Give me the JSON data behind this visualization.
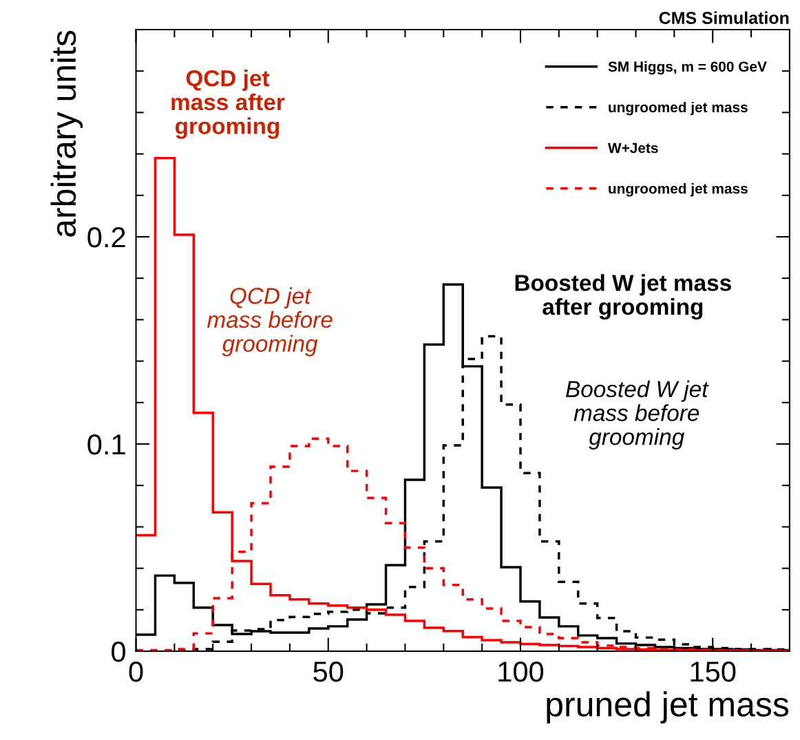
{
  "chart_data": {
    "type": "histogram",
    "title": "CMS Simulation",
    "xlabel": "pruned jet mass",
    "ylabel": "arbitrary units",
    "bins": [
      0,
      5,
      10,
      15,
      20,
      25,
      30,
      35,
      40,
      45,
      50,
      55,
      60,
      65,
      70,
      75,
      80,
      85,
      90,
      95,
      100,
      105,
      110,
      115,
      120,
      125,
      130,
      135,
      140,
      145,
      150,
      155,
      160,
      165,
      170
    ],
    "series": [
      {
        "name": "SM Higgs, m = 600 GeV",
        "color": "#000000",
        "line_style": "solid",
        "values": [
          0.008,
          0.0365,
          0.033,
          0.021,
          0.0126,
          0.0083,
          0.0096,
          0.009,
          0.009,
          0.011,
          0.012,
          0.0153,
          0.0226,
          0.0415,
          0.0827,
          0.148,
          0.177,
          0.1375,
          0.079,
          0.0405,
          0.024,
          0.0163,
          0.012,
          0.0076,
          0.0063,
          0.0037,
          0.003,
          0.002,
          0.0015,
          0.001,
          0.001,
          0.0008,
          0.0005,
          0.0005
        ]
      },
      {
        "name": "ungroomed jet mass",
        "color": "#000000",
        "line_style": "dashed",
        "values": [
          0,
          0,
          0.0003,
          0.001,
          0.0046,
          0.01,
          0.0106,
          0.015,
          0.0165,
          0.018,
          0.019,
          0.02,
          0.0183,
          0.021,
          0.031,
          0.053,
          0.0993,
          0.141,
          0.152,
          0.119,
          0.086,
          0.053,
          0.0335,
          0.023,
          0.016,
          0.0096,
          0.0066,
          0.0056,
          0.0033,
          0.002,
          0.0015,
          0.001,
          0.001,
          0.0008
        ]
      },
      {
        "name": "W+Jets",
        "color": "#ff0000",
        "line_style": "solid",
        "values": [
          0.056,
          0.238,
          0.201,
          0.115,
          0.067,
          0.0435,
          0.0325,
          0.027,
          0.025,
          0.023,
          0.022,
          0.021,
          0.02,
          0.0176,
          0.0146,
          0.0113,
          0.0097,
          0.0068,
          0.0053,
          0.0043,
          0.0035,
          0.003,
          0.0025,
          0.002,
          0.0015,
          0.001,
          0.0008,
          0.0006,
          0.0005,
          0.0004,
          0.0003,
          0.0003,
          0.0002,
          0.0002
        ]
      },
      {
        "name": "ungroomed jet mass",
        "color": "#ff0000",
        "line_style": "dashed",
        "values": [
          0.0005,
          0.0005,
          0.001,
          0.0086,
          0.0256,
          0.048,
          0.0714,
          0.089,
          0.099,
          0.1026,
          0.099,
          0.087,
          0.074,
          0.0618,
          0.05,
          0.04,
          0.032,
          0.025,
          0.0206,
          0.0146,
          0.0116,
          0.0083,
          0.0063,
          0.0043,
          0.0027,
          0.002,
          0.0015,
          0.001,
          0.0008,
          0.0006,
          0.0005,
          0.0004,
          0.0003,
          0.0003
        ]
      }
    ],
    "xlim": [
      0,
      170
    ],
    "ylim": [
      0,
      0.3
    ],
    "xticks": [
      0,
      {
        "value": 10,
        "label": null
      },
      {
        "value": 20,
        "label": null
      },
      {
        "value": 30,
        "label": null
      },
      {
        "value": 40,
        "label": null
      },
      50,
      {
        "value": 60,
        "label": null
      },
      {
        "value": 70,
        "label": null
      },
      {
        "value": 80,
        "label": null
      },
      {
        "value": 90,
        "label": null
      },
      100,
      {
        "value": 110,
        "label": null
      },
      {
        "value": 120,
        "label": null
      },
      {
        "value": 130,
        "label": null
      },
      {
        "value": 140,
        "label": null
      },
      150,
      {
        "value": 160,
        "label": null
      }
    ],
    "yticks": [
      0,
      {
        "value": 0.02,
        "label": null
      },
      {
        "value": 0.04,
        "label": null
      },
      {
        "value": 0.06,
        "label": null
      },
      {
        "value": 0.08,
        "label": null
      },
      0.1,
      {
        "value": 0.12,
        "label": null
      },
      {
        "value": 0.14,
        "label": null
      },
      {
        "value": 0.16,
        "label": null
      },
      {
        "value": 0.18,
        "label": null
      },
      0.2,
      {
        "value": 0.22,
        "label": null
      },
      {
        "value": 0.24,
        "label": null
      },
      {
        "value": 0.26,
        "label": null
      },
      {
        "value": 0.28,
        "label": null
      }
    ],
    "legend": "top right",
    "grid": false,
    "annotations": [
      "QCD jet\nmass after\ngrooming",
      "QCD jet\nmass before\ngrooming",
      "Boosted W jet mass\nafter grooming",
      "Boosted W jet\nmass before\ngrooming"
    ]
  }
}
